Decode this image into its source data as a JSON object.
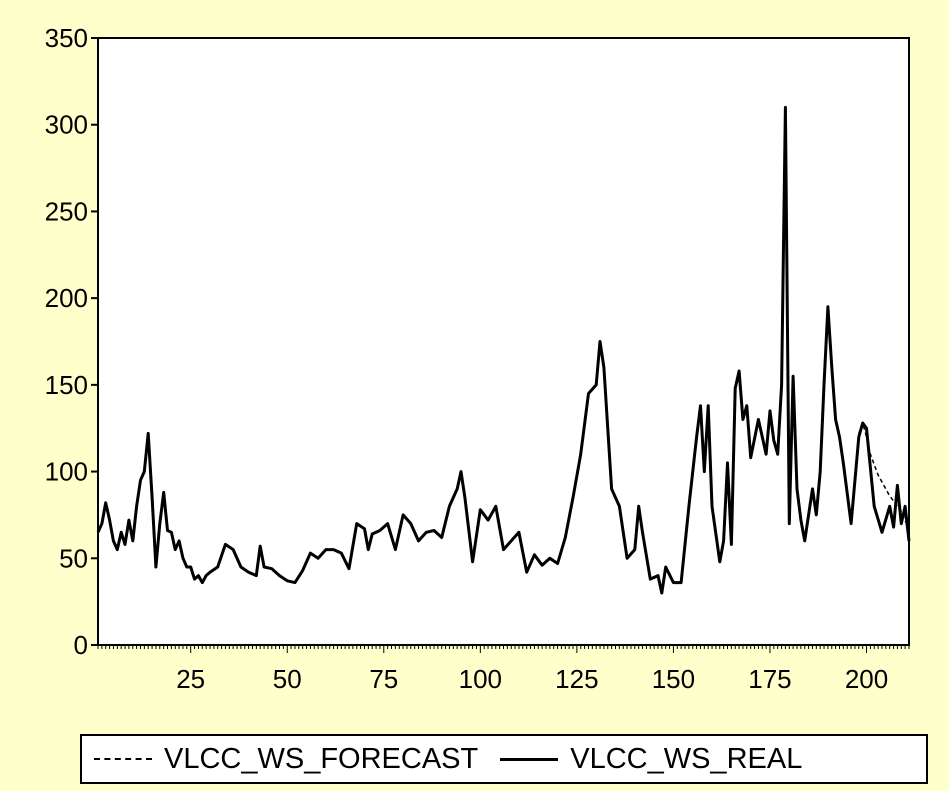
{
  "chart_data": {
    "type": "line",
    "title": "",
    "xlabel": "",
    "ylabel": "",
    "xlim": [
      1,
      211
    ],
    "ylim": [
      0,
      350
    ],
    "x_ticks": [
      25,
      50,
      75,
      100,
      125,
      150,
      175,
      200
    ],
    "y_ticks": [
      0,
      50,
      100,
      150,
      200,
      250,
      300,
      350
    ],
    "grid": false,
    "legend_position": "bottom",
    "series": [
      {
        "name": "VLCC_WS_FORECAST",
        "style": "dashed",
        "color": "#000000",
        "x": [
          198,
          199,
          200,
          201,
          202,
          203,
          204,
          205,
          206,
          207,
          208,
          209,
          210,
          211
        ],
        "y": [
          122,
          128,
          120,
          110,
          104,
          98,
          94,
          90,
          86,
          83,
          80,
          77,
          72,
          65
        ]
      },
      {
        "name": "VLCC_WS_REAL",
        "style": "solid",
        "color": "#000000",
        "x": [
          1,
          2,
          3,
          4,
          5,
          6,
          7,
          8,
          9,
          10,
          11,
          12,
          13,
          14,
          15,
          16,
          17,
          18,
          19,
          20,
          21,
          22,
          23,
          24,
          25,
          26,
          27,
          28,
          29,
          30,
          32,
          34,
          36,
          38,
          40,
          42,
          43,
          44,
          46,
          48,
          50,
          52,
          54,
          56,
          58,
          60,
          62,
          64,
          66,
          68,
          70,
          71,
          72,
          74,
          76,
          78,
          80,
          82,
          84,
          86,
          88,
          90,
          92,
          94,
          95,
          96,
          98,
          100,
          102,
          104,
          106,
          108,
          110,
          112,
          114,
          116,
          118,
          120,
          122,
          124,
          126,
          128,
          130,
          131,
          132,
          134,
          136,
          138,
          140,
          141,
          142,
          144,
          146,
          147,
          148,
          150,
          152,
          154,
          156,
          157,
          158,
          159,
          160,
          162,
          163,
          164,
          165,
          166,
          167,
          168,
          169,
          170,
          172,
          174,
          175,
          176,
          177,
          178,
          179,
          180,
          181,
          182,
          183,
          184,
          186,
          187,
          188,
          189,
          190,
          191,
          192,
          193,
          194,
          196,
          198,
          199,
          200,
          202,
          204,
          206,
          207,
          208,
          209,
          210,
          211
        ],
        "y": [
          65,
          70,
          82,
          72,
          60,
          55,
          65,
          58,
          72,
          60,
          80,
          95,
          100,
          122,
          85,
          45,
          70,
          88,
          66,
          65,
          55,
          60,
          50,
          45,
          45,
          38,
          40,
          36,
          40,
          42,
          45,
          58,
          55,
          45,
          42,
          40,
          57,
          45,
          44,
          40,
          37,
          36,
          43,
          53,
          50,
          55,
          55,
          53,
          44,
          70,
          67,
          55,
          64,
          66,
          70,
          55,
          75,
          70,
          60,
          65,
          66,
          62,
          80,
          90,
          100,
          85,
          48,
          78,
          72,
          80,
          55,
          60,
          65,
          42,
          52,
          46,
          50,
          47,
          62,
          85,
          110,
          145,
          150,
          175,
          160,
          90,
          80,
          50,
          55,
          80,
          65,
          38,
          40,
          30,
          45,
          36,
          36,
          80,
          120,
          138,
          100,
          138,
          80,
          48,
          60,
          105,
          58,
          148,
          158,
          130,
          138,
          108,
          130,
          110,
          135,
          118,
          110,
          150,
          310,
          70,
          155,
          90,
          72,
          60,
          90,
          75,
          100,
          150,
          195,
          160,
          130,
          120,
          105,
          70,
          120,
          128,
          125,
          80,
          65,
          80,
          68,
          92,
          70,
          80,
          60
        ]
      }
    ]
  }
}
